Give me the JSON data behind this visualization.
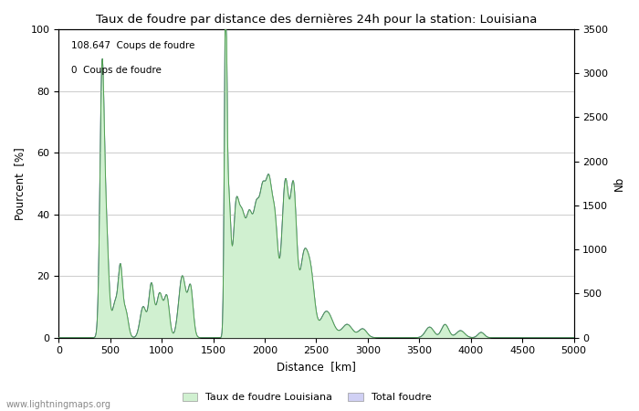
{
  "title": "Taux de foudre par distance des dernières 24h pour la station: Louisiana",
  "xlabel": "Distance  [km]",
  "ylabel_left": "Pourcent  [%]",
  "ylabel_right": "Nb",
  "annotation_line1": "108.647  Coups de foudre",
  "annotation_line2": "0  Coups de foudre",
  "legend_label1": "Taux de foudre Louisiana",
  "legend_label2": "Total foudre",
  "watermark": "www.lightningmaps.org",
  "xlim": [
    0,
    5000
  ],
  "ylim_left": [
    0,
    100
  ],
  "ylim_right": [
    0,
    3500
  ],
  "xticks": [
    0,
    500,
    1000,
    1500,
    2000,
    2500,
    3000,
    3500,
    4000,
    4500,
    5000
  ],
  "yticks_left": [
    0,
    20,
    40,
    60,
    80,
    100
  ],
  "yticks_right": [
    0,
    500,
    1000,
    1500,
    2000,
    2500,
    3000,
    3500
  ],
  "color_total": "#d0d0f4",
  "color_total_line": "#5050b0",
  "color_rate": "#d0f0d0",
  "color_rate_line": "#50a050",
  "grid_color": "#cccccc",
  "figsize": [
    7.0,
    4.5
  ],
  "dpi": 100,
  "bg_color": "#ffffff"
}
